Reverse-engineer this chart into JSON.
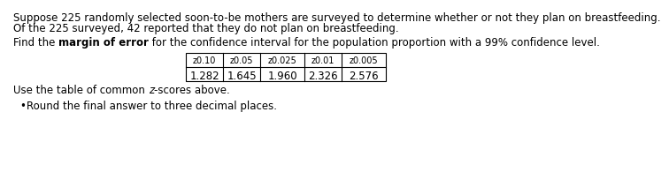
{
  "line1": "Suppose 225 randomly selected soon-to-be mothers are surveyed to determine whether or not they plan on breastfeeding.",
  "line2": "Of the 225 surveyed, 42 reported that they do not plan on breastfeeding.",
  "line3_prefix": "Find the ",
  "line3_bold": "margin of error",
  "line3_suffix": " for the confidence interval for the population proportion with a 99% confidence level.",
  "table_headers": [
    "z0.10",
    "z0.05",
    "z0.025",
    "z0.01",
    "z0.005"
  ],
  "table_header_subs": [
    "0.10",
    "0.05",
    "0.025",
    "0.01",
    "0.005"
  ],
  "table_values": [
    "1.282",
    "1.645",
    "1.960",
    "2.326",
    "2.576"
  ],
  "line4_normal1": "Use the table of common ",
  "line4_italic": "z",
  "line4_normal2": "-scores above.",
  "bullet_text": "Round the final answer to three decimal places.",
  "bg_color": "#ffffff",
  "text_color": "#000000",
  "font_size": 8.5
}
